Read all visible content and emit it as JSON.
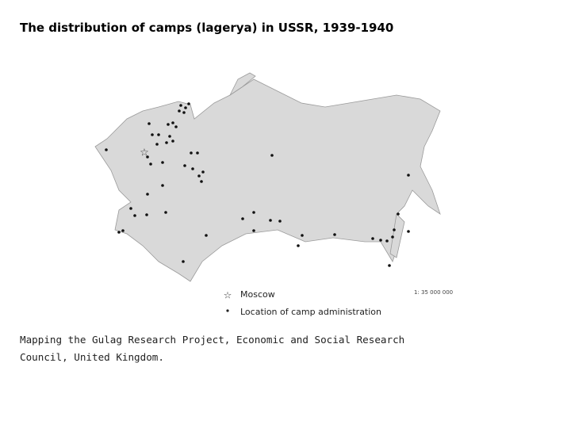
{
  "header": {
    "title": "The distribution of camps (lagerya) in USSR, 1939-1940"
  },
  "map": {
    "legend": [
      "Moscow",
      "Location of camp administration"
    ],
    "scale": "1: 35 000 000"
  },
  "caption": "Mapping the Gulag Research Project, Economic and Social Research Council, United Kingdom."
}
